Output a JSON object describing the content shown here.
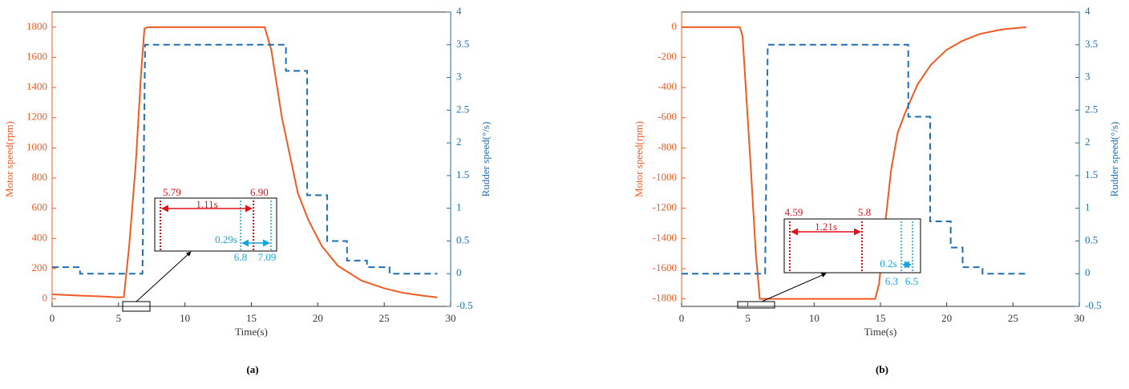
{
  "chart_data": [
    {
      "type": "line",
      "caption": "(a)",
      "xlabel": "Time(s)",
      "ylabel": "Motor speed(rpm)",
      "y2label": "Rudder speed(°/s)",
      "xlim": [
        0,
        30
      ],
      "xticks": [
        0,
        5,
        10,
        15,
        20,
        25,
        30
      ],
      "ylim": [
        -50,
        1900
      ],
      "yticks": [
        0,
        200,
        400,
        600,
        800,
        1000,
        1200,
        1400,
        1600,
        1800
      ],
      "y2lim": [
        -0.5,
        4
      ],
      "y2ticks": [
        -0.5,
        0,
        0.5,
        1,
        1.5,
        2,
        2.5,
        3,
        3.5,
        4
      ],
      "series": [
        {
          "color": "#f15a22",
          "style": "solid",
          "x": [
            0,
            2,
            4,
            5,
            5.4,
            5.8,
            6.3,
            6.7,
            6.95,
            7.2,
            10,
            13,
            16,
            16.5,
            17.3,
            18.5,
            19.3,
            20.3,
            21.5,
            23.3,
            25,
            26.4,
            28,
            29
          ],
          "values": [
            30,
            22,
            15,
            10,
            12,
            350,
            900,
            1500,
            1790,
            1800,
            1800,
            1800,
            1800,
            1650,
            1200,
            700,
            520,
            350,
            220,
            120,
            70,
            40,
            20,
            10
          ]
        },
        {
          "color": "#1f6fb5",
          "style": "dashed",
          "axis": "y2",
          "x": [
            0,
            2.1,
            2.1,
            6.8,
            7.0,
            17.6,
            17.6,
            19.2,
            19.2,
            20.7,
            20.7,
            22.2,
            22.2,
            23.7,
            23.7,
            25.4,
            25.4,
            29
          ],
          "values": [
            0.1,
            0.1,
            0,
            0,
            3.5,
            3.5,
            3.1,
            3.1,
            1.2,
            1.2,
            0.5,
            0.5,
            0.2,
            0.2,
            0.1,
            0.1,
            0,
            0
          ]
        }
      ],
      "annotations": [
        "5.79",
        "6.90",
        "1.11s",
        "0.29s",
        "6.8",
        "7.09"
      ]
    },
    {
      "type": "line",
      "caption": "(b)",
      "xlabel": "Time(s)",
      "ylabel": "Motor speed(rpm)",
      "y2label": "Rudder speed(°/s)",
      "xlim": [
        0,
        30
      ],
      "xticks": [
        0,
        5,
        10,
        15,
        20,
        25,
        30
      ],
      "ylim": [
        -1850,
        100
      ],
      "yticks": [
        -1800,
        -1600,
        -1400,
        -1200,
        -1000,
        -800,
        -600,
        -400,
        -200,
        0
      ],
      "y2lim": [
        -0.5,
        4
      ],
      "y2ticks": [
        -0.5,
        0,
        0.5,
        1,
        1.5,
        2,
        2.5,
        3,
        3.5,
        4
      ],
      "series": [
        {
          "color": "#f15a22",
          "style": "solid",
          "x": [
            0,
            2,
            4.4,
            4.6,
            5.2,
            5.6,
            5.9,
            8,
            11,
            14.6,
            14.9,
            15.3,
            15.8,
            16.3,
            16.9,
            17.8,
            18.8,
            20,
            21.2,
            22.5,
            24.2,
            26
          ],
          "values": [
            0,
            0,
            0,
            -60,
            -900,
            -1500,
            -1800,
            -1800,
            -1800,
            -1800,
            -1700,
            -1350,
            -950,
            -700,
            -560,
            -380,
            -250,
            -150,
            -90,
            -45,
            -15,
            0
          ]
        },
        {
          "color": "#1f6fb5",
          "style": "dashed",
          "axis": "y2",
          "x": [
            0,
            6.3,
            6.5,
            17.1,
            17.1,
            18.75,
            18.75,
            20.3,
            20.3,
            21.2,
            21.2,
            22.7,
            22.7,
            26.2
          ],
          "values": [
            0,
            0,
            3.5,
            3.5,
            2.4,
            2.4,
            0.8,
            0.8,
            0.4,
            0.4,
            0.1,
            0.1,
            0,
            0
          ]
        }
      ],
      "annotations": [
        "4.59",
        "5.8",
        "1.21s",
        "0.2s",
        "6.3",
        "6.5"
      ]
    }
  ]
}
